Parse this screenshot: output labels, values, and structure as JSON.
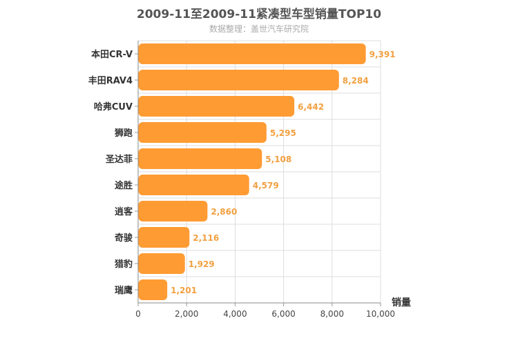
{
  "chart_data": {
    "type": "bar",
    "orientation": "horizontal",
    "title": "2009-11至2009-11紧凑型车型销量TOP10",
    "subtitle": "数据整理：盖世汽车研究院",
    "xlabel": "销量",
    "ylabel": "",
    "xlim": [
      0,
      10000
    ],
    "xticks": [
      "0",
      "2,000",
      "4,000",
      "6,000",
      "8,000",
      "10,000"
    ],
    "grid": true,
    "categories": [
      "本田CR-V",
      "丰田RAV4",
      "哈弗CUV",
      "狮跑",
      "圣达菲",
      "途胜",
      "逍客",
      "奇骏",
      "猎豹",
      "瑞鹰"
    ],
    "values": [
      9391,
      8284,
      6442,
      5295,
      5108,
      4579,
      2860,
      2116,
      1929,
      1201
    ],
    "value_labels": [
      "9,391",
      "8,284",
      "6,442",
      "5,295",
      "5,108",
      "4,579",
      "2,860",
      "2,116",
      "1,929",
      "1,201"
    ],
    "bar_color": "#ff9b33",
    "label_color": "#f2a040"
  }
}
